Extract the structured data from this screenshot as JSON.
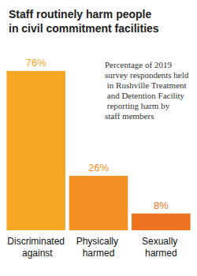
{
  "chart_data": {
    "type": "bar",
    "title": "Staff routinely harm people\nin civil commitment facilities",
    "annotation": "Percentage of 2019 survey respondents held in Rushville Treatment and Detention Facility reporting harm by staff members",
    "categories": [
      "Discriminated against",
      "Physically harmed",
      "Sexually harmed"
    ],
    "values": [
      76,
      26,
      8
    ],
    "value_labels": [
      "76%",
      "26%",
      "8%"
    ],
    "colors": [
      "#f5a623",
      "#f39124",
      "#ee7420"
    ],
    "ylim": [
      0,
      76
    ],
    "grid": false,
    "data_labels": true,
    "tick_labels": "x"
  }
}
